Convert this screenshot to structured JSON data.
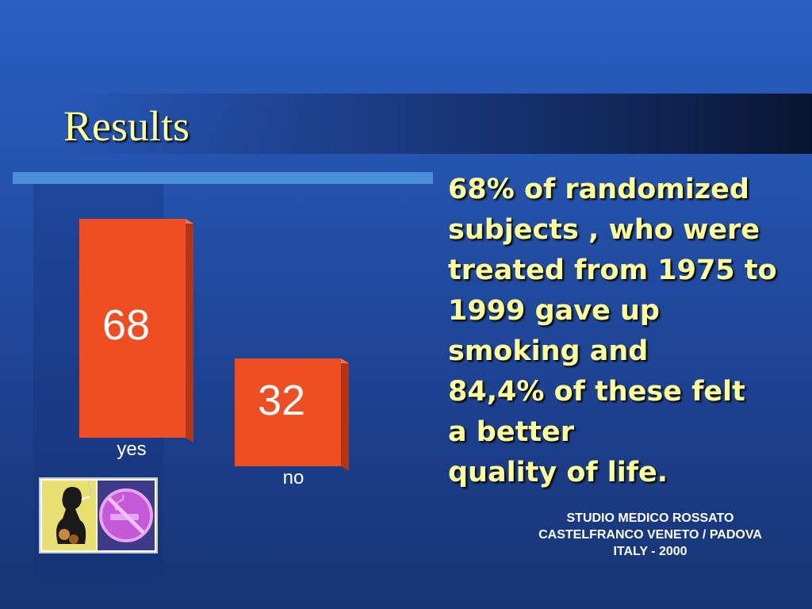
{
  "slide": {
    "title": "Results",
    "body_lines": [
      "68% of randomized",
      "subjects , who were",
      "treated from 1975 to",
      "1999 gave up",
      "smoking and",
      "84,4%  of these felt",
      "a better",
      "quality  of life."
    ],
    "credit_lines": [
      "STUDIO MEDICO ROSSATO",
      "CASTELFRANCO VENETO / PADOVA",
      "ITALY - 2000"
    ]
  },
  "colors": {
    "title": "#ffff99",
    "bar_front": "#ee4e22",
    "bar_side": "#b8330f",
    "bar_top": "#f6744a",
    "rule": "#4a90d9"
  },
  "icons": [
    "smoking-woman-icon",
    "no-smoking-icon"
  ],
  "chart_data": {
    "type": "bar",
    "categories": [
      "yes",
      "no"
    ],
    "values": [
      68,
      32
    ],
    "data_labels": [
      "68",
      "32"
    ],
    "ylim": [
      0,
      68
    ],
    "grid": false,
    "legend": "none"
  }
}
